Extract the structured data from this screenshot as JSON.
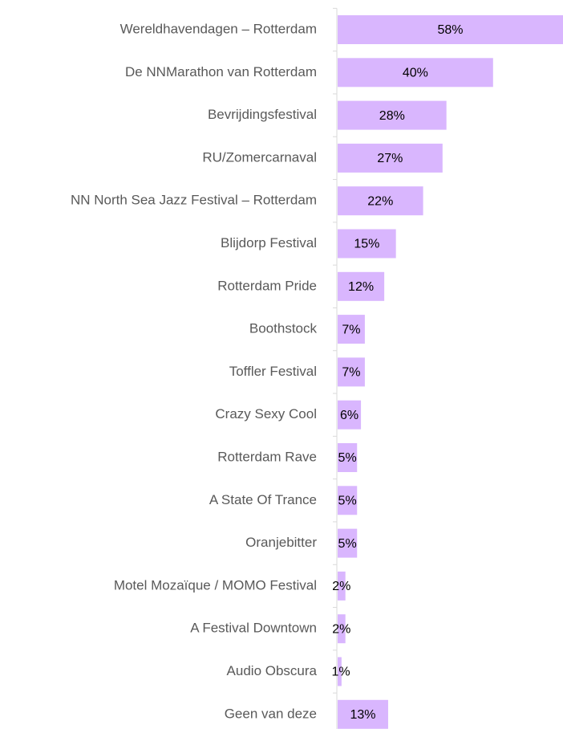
{
  "chart_data": {
    "type": "barh",
    "categories": [
      "Wereldhavendagen – Rotterdam",
      "De NNMarathon van Rotterdam",
      "Bevrijdingsfestival",
      "RU/Zomercarnaval",
      "NN North Sea Jazz Festival – Rotterdam",
      "Blijdorp Festival",
      "Rotterdam Pride",
      "Boothstock",
      "Toffler Festival",
      "Crazy Sexy Cool",
      "Rotterdam Rave",
      "A State Of Trance",
      "Oranjebitter",
      "Motel Mozaïque / MOMO Festival",
      "A Festival Downtown",
      "Audio Obscura",
      "Geen van deze"
    ],
    "values": [
      58,
      40,
      28,
      27,
      22,
      15,
      12,
      7,
      7,
      6,
      5,
      5,
      5,
      2,
      2,
      1,
      13
    ],
    "value_labels": [
      "58%",
      "40%",
      "28%",
      "27%",
      "22%",
      "15%",
      "12%",
      "7%",
      "7%",
      "6%",
      "5%",
      "5%",
      "5%",
      "2%",
      "2%",
      "1%",
      "13%"
    ],
    "color": "#d9b6fe",
    "xlim": [
      0,
      58
    ]
  }
}
